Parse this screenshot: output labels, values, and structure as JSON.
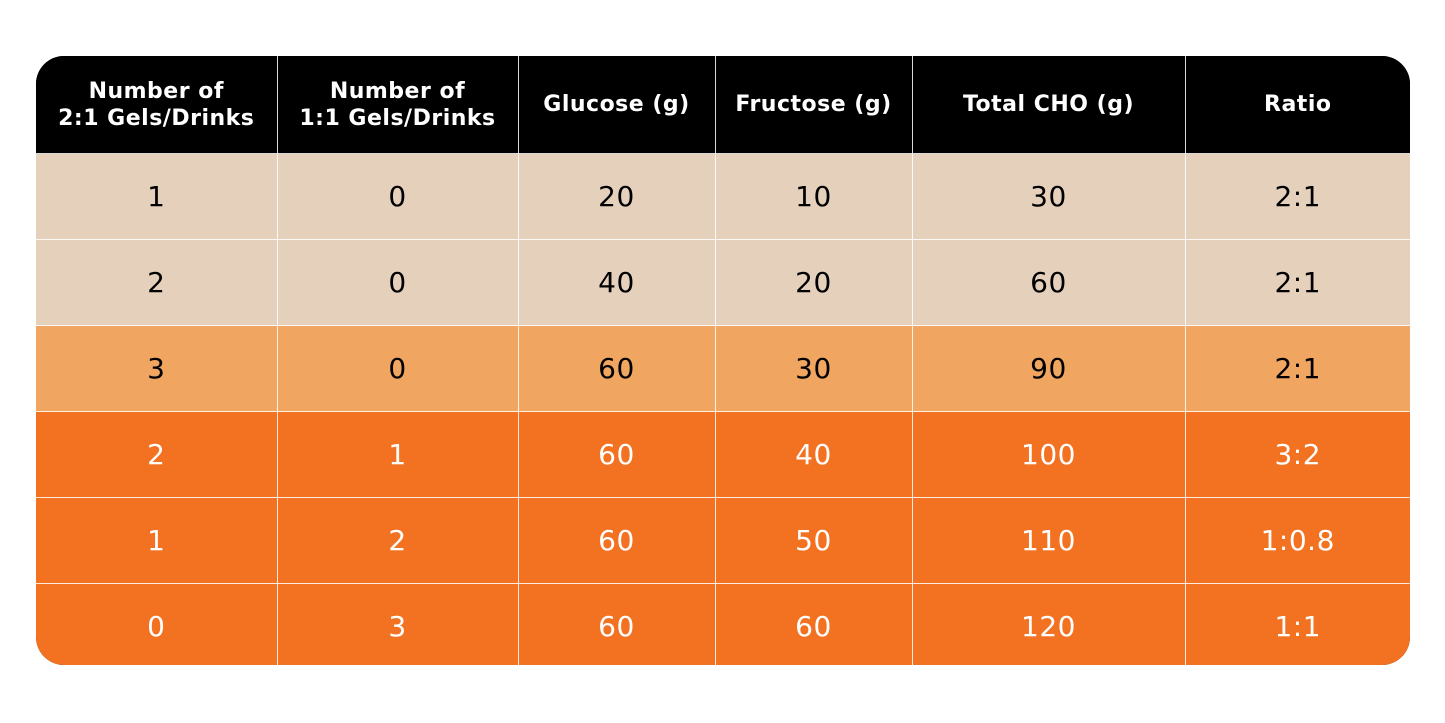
{
  "colors": {
    "header_bg": "#000000",
    "header_text": "#ffffff",
    "light_row_bg": "#e5d0bc",
    "mid_row_bg": "#f0a560",
    "dark_row_bg": "#f27221",
    "dark_text": "#000000",
    "light_text": "#ffffff"
  },
  "chart_data": {
    "type": "table",
    "columns": [
      "Number of 2:1 Gels/Drinks",
      "Number of 1:1 Gels/Drinks",
      "Glucose (g)",
      "Fructose (g)",
      "Total CHO (g)",
      "Ratio"
    ],
    "header_lines": [
      [
        "Number of",
        "2:1 Gels/Drinks"
      ],
      [
        "Number of",
        "1:1 Gels/Drinks"
      ],
      [
        "Glucose (g)"
      ],
      [
        "Fructose (g)"
      ],
      [
        "Total CHO (g)"
      ],
      [
        "Ratio"
      ]
    ],
    "rows": [
      {
        "cells": [
          "1",
          "0",
          "20",
          "10",
          "30",
          "2:1"
        ],
        "style": "light"
      },
      {
        "cells": [
          "2",
          "0",
          "40",
          "20",
          "60",
          "2:1"
        ],
        "style": "light"
      },
      {
        "cells": [
          "3",
          "0",
          "60",
          "30",
          "90",
          "2:1"
        ],
        "style": "mid"
      },
      {
        "cells": [
          "2",
          "1",
          "60",
          "40",
          "100",
          "3:2"
        ],
        "style": "dark"
      },
      {
        "cells": [
          "1",
          "2",
          "60",
          "50",
          "110",
          "1:0.8"
        ],
        "style": "dark"
      },
      {
        "cells": [
          "0",
          "3",
          "60",
          "60",
          "120",
          "1:1"
        ],
        "style": "dark"
      }
    ]
  }
}
